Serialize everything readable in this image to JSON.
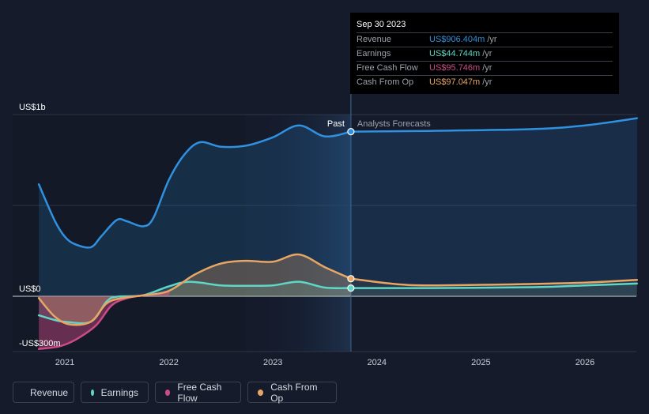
{
  "colors": {
    "revenue": "#2f91e0",
    "earnings": "#5fd6c6",
    "fcf": "#cc4a86",
    "cfo": "#e8a665",
    "background": "#151b2b"
  },
  "tooltip": {
    "date": "Sep 30 2023",
    "rows": [
      {
        "label": "Revenue",
        "value": "US$906.404m",
        "unit": "/yr",
        "color": "#2f91e0"
      },
      {
        "label": "Earnings",
        "value": "US$44.744m",
        "unit": "/yr",
        "color": "#5fd6c6"
      },
      {
        "label": "Free Cash Flow",
        "value": "US$95.746m",
        "unit": "/yr",
        "color": "#cc4a86"
      },
      {
        "label": "Cash From Op",
        "value": "US$97.047m",
        "unit": "/yr",
        "color": "#e8a665"
      }
    ]
  },
  "legend": [
    {
      "label": "Revenue",
      "color": "#2f91e0",
      "icon": "revenue-dot"
    },
    {
      "label": "Earnings",
      "color": "#5fd6c6",
      "icon": "earnings-dot"
    },
    {
      "label": "Free Cash Flow",
      "color": "#cc4a86",
      "icon": "free-cash-flow-dot"
    },
    {
      "label": "Cash From Op",
      "color": "#e8a665",
      "icon": "cash-from-op-dot"
    }
  ],
  "chart_data": {
    "type": "line",
    "y_axis_labels": [
      {
        "text": "US$1b",
        "value": 1000
      },
      {
        "text": "US$0",
        "value": 0
      },
      {
        "text": "-US$300m",
        "value": -300
      }
    ],
    "ylim": [
      -300,
      1000
    ],
    "xlim": [
      2020.75,
      2026.5
    ],
    "x_tick_labels": [
      {
        "text": "2021",
        "value": 2021
      },
      {
        "text": "2022",
        "value": 2022
      },
      {
        "text": "2023",
        "value": 2023
      },
      {
        "text": "2024",
        "value": 2024
      },
      {
        "text": "2025",
        "value": 2025
      },
      {
        "text": "2026",
        "value": 2026
      }
    ],
    "past_label": "Past",
    "forecast_label": "Analysts Forecasts",
    "divider_x": 2023.75,
    "grid": true,
    "series": [
      {
        "name": "Revenue",
        "color": "#2f91e0",
        "points": [
          [
            2020.75,
            616
          ],
          [
            2020.9,
            420
          ],
          [
            2021.0,
            328
          ],
          [
            2021.1,
            286
          ],
          [
            2021.25,
            270
          ],
          [
            2021.35,
            330
          ],
          [
            2021.5,
            420
          ],
          [
            2021.6,
            412
          ],
          [
            2021.75,
            385
          ],
          [
            2021.85,
            430
          ],
          [
            2022.0,
            640
          ],
          [
            2022.15,
            780
          ],
          [
            2022.3,
            848
          ],
          [
            2022.5,
            823
          ],
          [
            2022.75,
            830
          ],
          [
            2023.0,
            875
          ],
          [
            2023.25,
            940
          ],
          [
            2023.5,
            880
          ],
          [
            2023.75,
            906
          ]
        ],
        "forecast": [
          [
            2023.75,
            906
          ],
          [
            2024.5,
            910
          ],
          [
            2025.5,
            920
          ],
          [
            2026.0,
            940
          ],
          [
            2026.5,
            980
          ]
        ]
      },
      {
        "name": "Earnings",
        "color": "#5fd6c6",
        "points": [
          [
            2020.75,
            -105
          ],
          [
            2020.9,
            -130
          ],
          [
            2021.0,
            -140
          ],
          [
            2021.25,
            -140
          ],
          [
            2021.4,
            -30
          ],
          [
            2021.5,
            -2
          ],
          [
            2021.75,
            5
          ],
          [
            2022.0,
            55
          ],
          [
            2022.2,
            80
          ],
          [
            2022.5,
            60
          ],
          [
            2022.75,
            58
          ],
          [
            2023.0,
            60
          ],
          [
            2023.25,
            80
          ],
          [
            2023.5,
            48
          ],
          [
            2023.75,
            45
          ]
        ],
        "forecast": [
          [
            2023.75,
            45
          ],
          [
            2024.5,
            45
          ],
          [
            2025.5,
            50
          ],
          [
            2026.0,
            60
          ],
          [
            2026.5,
            70
          ]
        ]
      },
      {
        "name": "Free Cash Flow",
        "color": "#cc4a86",
        "points": [
          [
            2020.75,
            -290
          ],
          [
            2020.95,
            -275
          ],
          [
            2021.1,
            -240
          ],
          [
            2021.3,
            -160
          ],
          [
            2021.45,
            -50
          ],
          [
            2021.6,
            -10
          ],
          [
            2021.75,
            5
          ],
          [
            2022.0,
            20
          ]
        ]
      },
      {
        "name": "Cash From Op",
        "color": "#e8a665",
        "points": [
          [
            2020.75,
            -10
          ],
          [
            2020.9,
            -110
          ],
          [
            2021.05,
            -155
          ],
          [
            2021.25,
            -140
          ],
          [
            2021.4,
            -40
          ],
          [
            2021.55,
            -10
          ],
          [
            2021.75,
            5
          ],
          [
            2022.0,
            30
          ],
          [
            2022.25,
            120
          ],
          [
            2022.5,
            180
          ],
          [
            2022.75,
            195
          ],
          [
            2023.0,
            190
          ],
          [
            2023.25,
            230
          ],
          [
            2023.5,
            160
          ],
          [
            2023.75,
            97
          ]
        ],
        "forecast": [
          [
            2023.75,
            97
          ],
          [
            2024.3,
            62
          ],
          [
            2025.0,
            63
          ],
          [
            2025.5,
            68
          ],
          [
            2026.0,
            75
          ],
          [
            2026.5,
            90
          ]
        ]
      }
    ]
  }
}
